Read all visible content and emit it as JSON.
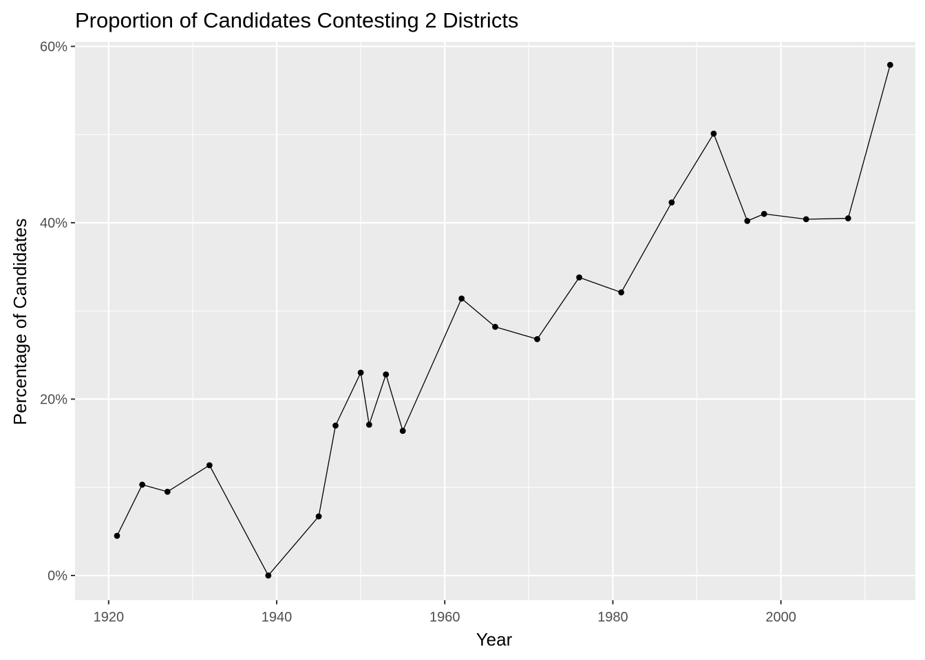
{
  "chart_data": {
    "type": "line",
    "title": "Proportion of Candidates Contesting 2 Districts",
    "xlabel": "Year",
    "ylabel": "Percentage of Candidates",
    "xlim": [
      1916,
      2016
    ],
    "ylim": [
      -2.8,
      60.5
    ],
    "x_ticks": [
      1920,
      1940,
      1960,
      1980,
      2000
    ],
    "x_tick_labels": [
      "1920",
      "1940",
      "1960",
      "1980",
      "2000"
    ],
    "x_minor_ticks": [
      1930,
      1950,
      1970,
      1990,
      2010
    ],
    "y_ticks": [
      0,
      20,
      40,
      60
    ],
    "y_tick_labels": [
      "0%",
      "20%",
      "40%",
      "60%"
    ],
    "y_minor_ticks": [
      10,
      30,
      50
    ],
    "grid": true,
    "legend": "none",
    "colors": {
      "panel_background": "#ebebeb",
      "grid_line": "#ffffff",
      "series": "#000000",
      "tick_label": "#4d4d4d",
      "tick_mark": "#333333"
    },
    "series": [
      {
        "x": [
          1921,
          1924,
          1927,
          1932,
          1939,
          1945,
          1947,
          1950,
          1951,
          1953,
          1955,
          1962,
          1966,
          1971,
          1976,
          1981,
          1987,
          1992,
          1996,
          1998,
          2003,
          2008,
          2013
        ],
        "y": [
          4.5,
          10.3,
          9.5,
          12.5,
          0.0,
          6.7,
          17.0,
          23.0,
          17.1,
          22.8,
          16.4,
          31.4,
          28.2,
          26.8,
          33.8,
          32.1,
          42.3,
          50.1,
          40.2,
          41.0,
          40.4,
          40.5,
          57.9
        ]
      }
    ]
  }
}
